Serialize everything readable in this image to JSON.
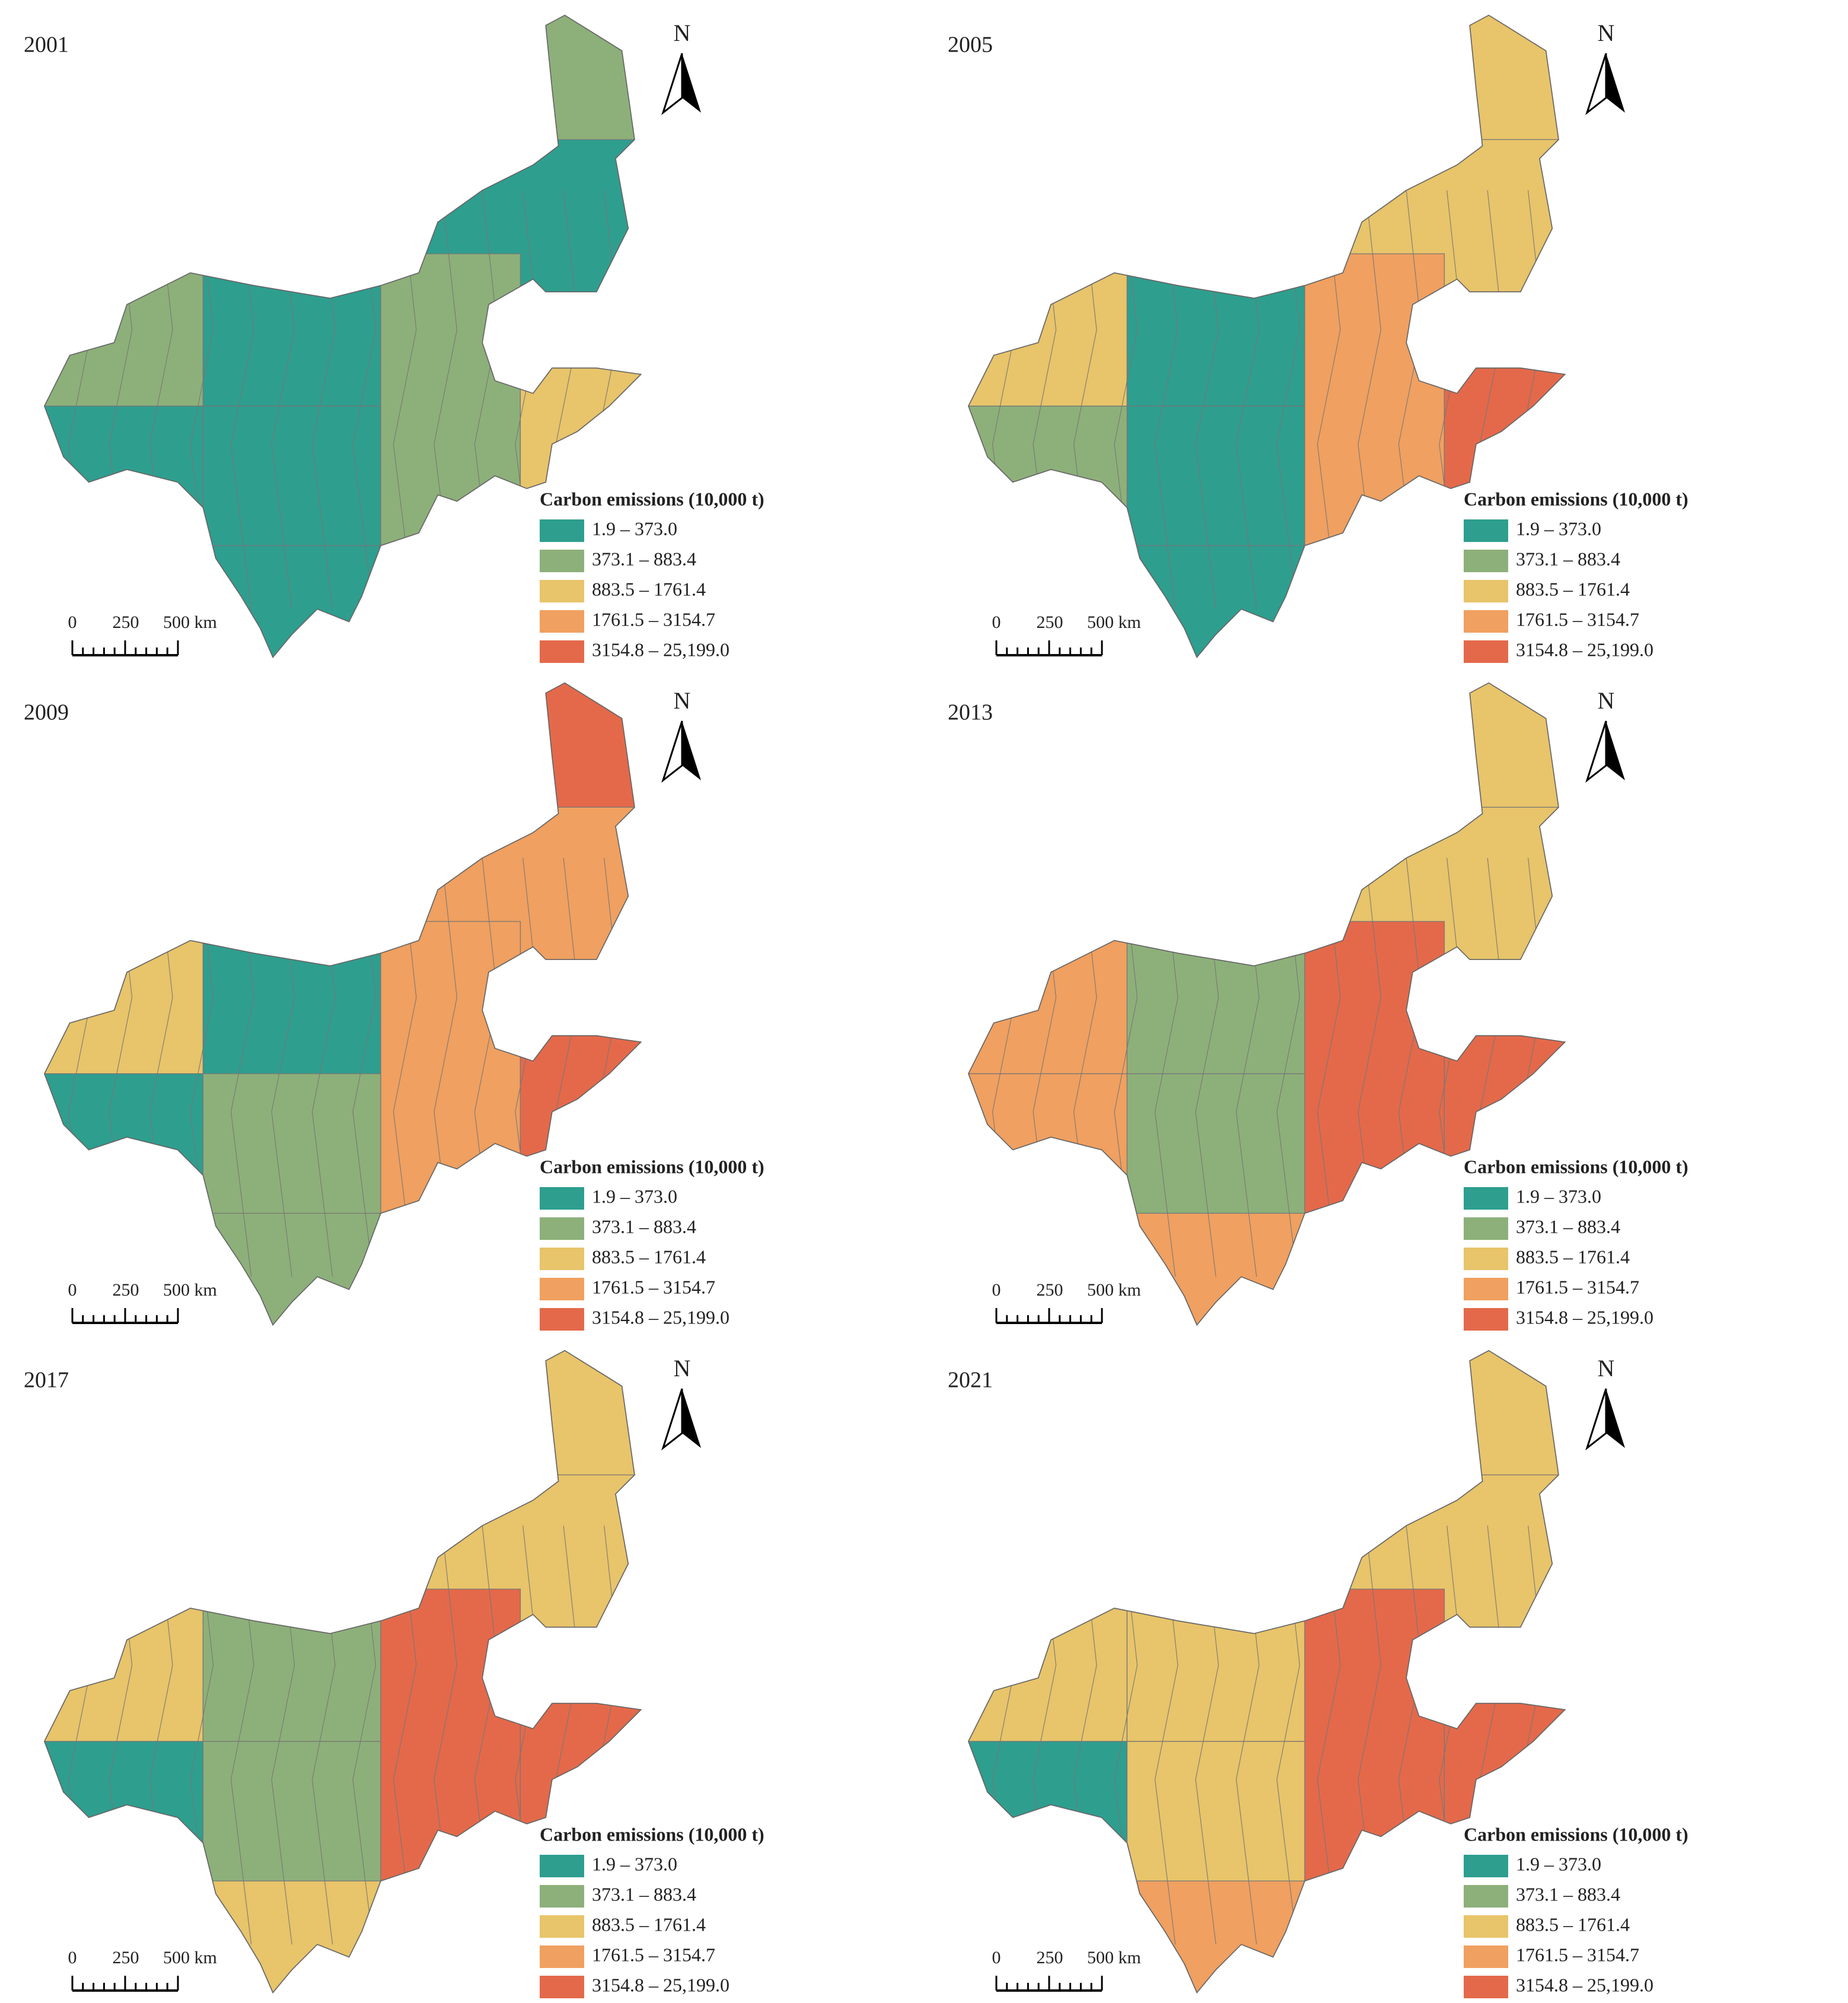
{
  "panels": [
    {
      "year": "2001"
    },
    {
      "year": "2005"
    },
    {
      "year": "2009"
    },
    {
      "year": "2013"
    },
    {
      "year": "2017"
    },
    {
      "year": "2021"
    }
  ],
  "legend": {
    "title": "Carbon emissions (10,000 t)",
    "items": [
      {
        "label": "1.9 – 373.0",
        "color": "#2e9e8f"
      },
      {
        "label": "373.1 – 883.4",
        "color": "#8db07a"
      },
      {
        "label": "883.5 – 1761.4",
        "color": "#e8c46a"
      },
      {
        "label": "1761.5 – 3154.7",
        "color": "#f0a060"
      },
      {
        "label": "3154.8 – 25,199.0",
        "color": "#e4694a"
      }
    ]
  },
  "scale_bar": {
    "labels": [
      "0",
      "250",
      "500 km"
    ]
  },
  "north": "N"
}
